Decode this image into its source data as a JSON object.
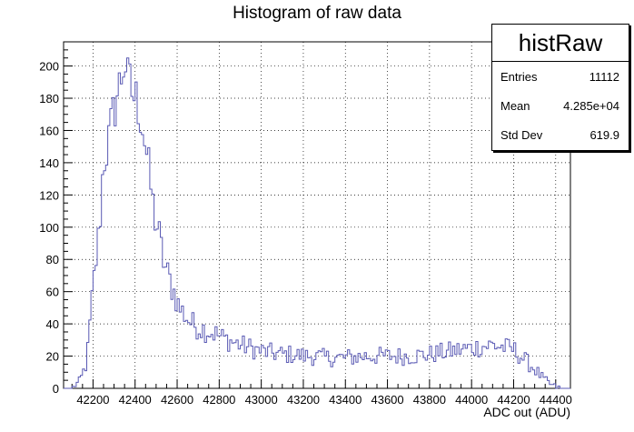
{
  "chart_data": {
    "type": "histogram",
    "title": "Histogram of raw data",
    "xlabel": "ADC out (ADU)",
    "ylabel": "",
    "xlim": [
      42060,
      44470
    ],
    "ylim": [
      0,
      215
    ],
    "grid": true,
    "x_ticks": [
      42200,
      42400,
      42600,
      42800,
      43000,
      43200,
      43400,
      43600,
      43800,
      44000,
      44200,
      44400
    ],
    "y_ticks": [
      0,
      20,
      40,
      60,
      80,
      100,
      120,
      140,
      160,
      180,
      200
    ],
    "series": [
      {
        "color": "#5a5ab4",
        "bins": [
          [
            42100,
            0
          ],
          [
            42140,
            5
          ],
          [
            42170,
            16
          ],
          [
            42200,
            62
          ],
          [
            42230,
            98
          ],
          [
            42250,
            141
          ],
          [
            42270,
            150
          ],
          [
            42290,
            165
          ],
          [
            42310,
            180
          ],
          [
            42330,
            190
          ],
          [
            42350,
            205
          ],
          [
            42370,
            190
          ],
          [
            42390,
            182
          ],
          [
            42410,
            178
          ],
          [
            42430,
            168
          ],
          [
            42450,
            150
          ],
          [
            42470,
            130
          ],
          [
            42490,
            108
          ],
          [
            42510,
            98
          ],
          [
            42530,
            82
          ],
          [
            42550,
            72
          ],
          [
            42570,
            65
          ],
          [
            42590,
            58
          ],
          [
            42610,
            50
          ],
          [
            42640,
            45
          ],
          [
            42670,
            40
          ],
          [
            42700,
            38
          ],
          [
            42740,
            36
          ],
          [
            42780,
            34
          ],
          [
            42820,
            31
          ],
          [
            42860,
            29
          ],
          [
            42900,
            27
          ],
          [
            42950,
            25
          ],
          [
            43000,
            23
          ],
          [
            43050,
            22
          ],
          [
            43100,
            21
          ],
          [
            43150,
            21
          ],
          [
            43200,
            20
          ],
          [
            43250,
            20
          ],
          [
            43300,
            19
          ],
          [
            43400,
            19
          ],
          [
            43500,
            20
          ],
          [
            43600,
            20
          ],
          [
            43700,
            20
          ],
          [
            43800,
            21
          ],
          [
            43900,
            23
          ],
          [
            44000,
            25
          ],
          [
            44100,
            27
          ],
          [
            44200,
            24
          ],
          [
            44250,
            18
          ],
          [
            44300,
            12
          ],
          [
            44340,
            6
          ],
          [
            44380,
            2
          ],
          [
            44420,
            0
          ]
        ]
      }
    ]
  },
  "stats": {
    "name": "histRaw",
    "rows": [
      {
        "label": "Entries",
        "value": "11112"
      },
      {
        "label": "Mean",
        "value": "4.285e+04"
      },
      {
        "label": "Std Dev",
        "value": "619.9"
      }
    ]
  }
}
